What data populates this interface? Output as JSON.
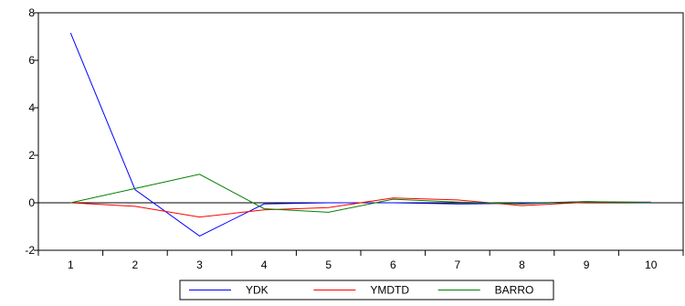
{
  "chart_data": {
    "type": "line",
    "title": "",
    "xlabel": "",
    "ylabel": "",
    "x": [
      1,
      2,
      3,
      4,
      5,
      6,
      7,
      8,
      9,
      10
    ],
    "ylim": [
      -2,
      8
    ],
    "yticks": [
      -2,
      0,
      2,
      4,
      6,
      8
    ],
    "grid": false,
    "zero_line": true,
    "legend_position": "bottom",
    "series": [
      {
        "name": "YDK",
        "color": "#0000ff",
        "values": [
          7.15,
          0.55,
          -1.4,
          -0.05,
          0.0,
          0.0,
          -0.05,
          -0.02,
          0.05,
          0.0
        ]
      },
      {
        "name": "YMDTD",
        "color": "#ff0000",
        "values": [
          0.0,
          -0.15,
          -0.6,
          -0.3,
          -0.2,
          0.2,
          0.12,
          -0.12,
          0.02,
          0.03
        ]
      },
      {
        "name": "BARRO",
        "color": "#008000",
        "values": [
          0.0,
          0.6,
          1.2,
          -0.25,
          -0.4,
          0.15,
          0.03,
          -0.05,
          0.05,
          0.02
        ]
      }
    ]
  }
}
